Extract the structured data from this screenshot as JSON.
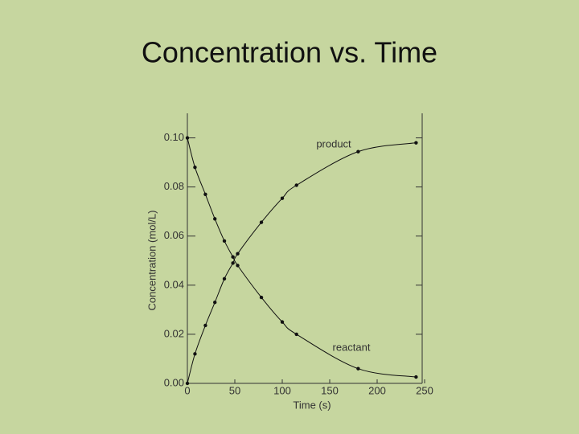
{
  "chart_data": {
    "type": "scatter-curve",
    "title": "Concentration vs. Time",
    "x_label": "Time (s)",
    "y_label": "Concentration (mol/L)",
    "x": [
      0,
      8,
      19,
      29,
      39,
      48,
      53,
      78,
      100,
      115,
      180,
      241
    ],
    "series": [
      {
        "name": "reactant",
        "color": "#111111",
        "values": [
          0.1,
          0.088,
          0.077,
          0.067,
          0.058,
          0.0515,
          0.048,
          0.035,
          0.025,
          0.02,
          0.006,
          0.0026
        ]
      },
      {
        "name": "product",
        "color": "#111111",
        "values": [
          0.0,
          0.012,
          0.0236,
          0.033,
          0.0426,
          0.049,
          0.0528,
          0.0656,
          0.0754,
          0.0807,
          0.0944,
          0.098
        ]
      }
    ],
    "xlim": [
      0,
      250
    ],
    "ylim": [
      0,
      0.11
    ],
    "xticks": [
      0,
      50,
      100,
      150,
      200,
      250
    ],
    "yticks": [
      {
        "value": 0,
        "label": "0.00"
      },
      {
        "value": 0.02,
        "label": "0.02"
      },
      {
        "value": 0.04,
        "label": "0.04"
      },
      {
        "value": 0.06,
        "label": "0.06"
      },
      {
        "value": 0.08,
        "label": "0.08"
      },
      {
        "value": 0.1,
        "label": "0.10"
      }
    ]
  }
}
